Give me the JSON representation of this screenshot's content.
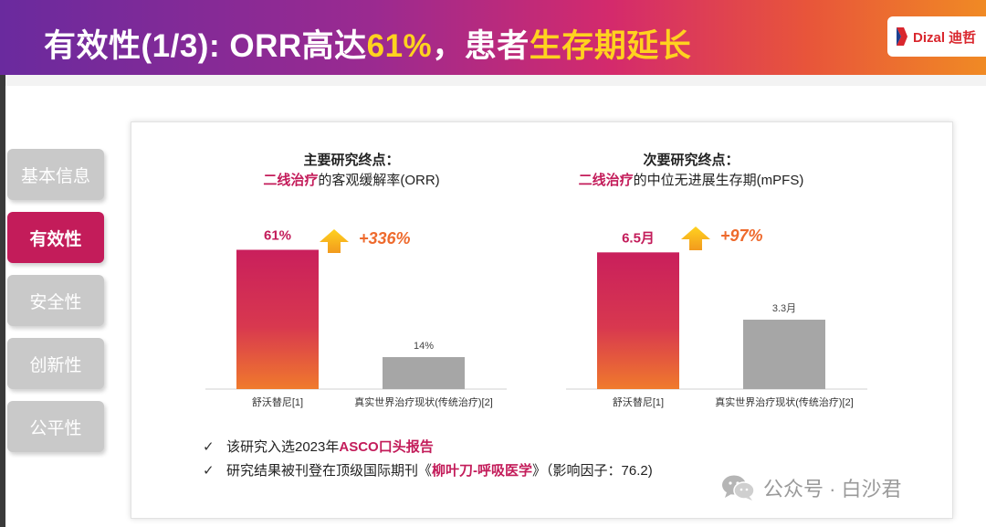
{
  "header": {
    "title_prefix": "有效性(1/3): ORR高达",
    "title_hl1": "61%",
    "title_mid": "，患者",
    "title_hl2": "生存期延长",
    "logo_text": "Dizal 迪哲"
  },
  "nav": {
    "items": [
      {
        "label": "基本信息",
        "active": false
      },
      {
        "label": "有效性",
        "active": true
      },
      {
        "label": "安全性",
        "active": false
      },
      {
        "label": "创新性",
        "active": false
      },
      {
        "label": "公平性",
        "active": false
      }
    ]
  },
  "chart_data": [
    {
      "type": "bar",
      "title": "主要研究终点：",
      "subtitle_highlight": "二线治疗",
      "subtitle_rest": "的客观缓解率(ORR)",
      "categories": [
        "舒沃替尼[1]",
        "真实世界治疗现状(传统治疗)[2]"
      ],
      "values": [
        61,
        14
      ],
      "value_labels": [
        "61%",
        "14%"
      ],
      "ylim": [
        0,
        70
      ],
      "growth_label": "+336%",
      "colors": {
        "highlight_top": "#c91f5c",
        "highlight_bottom": "#f07a2c",
        "baseline": "#a6a6a6"
      },
      "grid": false
    },
    {
      "type": "bar",
      "title": "次要研究终点：",
      "subtitle_highlight": "二线治疗",
      "subtitle_rest": "的中位无进展生存期(mPFS)",
      "categories": [
        "舒沃替尼[1]",
        "真实世界治疗现状(传统治疗)[2]"
      ],
      "values": [
        6.5,
        3.3
      ],
      "value_labels": [
        "6.5月",
        "3.3月"
      ],
      "ylim": [
        0,
        7.6
      ],
      "growth_label": "+97%",
      "colors": {
        "highlight_top": "#c91f5c",
        "highlight_bottom": "#f07a2c",
        "baseline": "#a6a6a6"
      },
      "grid": false
    }
  ],
  "bullets": [
    {
      "prefix": "该研究入选2023年",
      "highlight": "ASCO口头报告",
      "suffix": ""
    },
    {
      "prefix": "研究结果被刊登在顶级国际期刊《",
      "highlight": "柳叶刀-呼吸医学",
      "suffix": "》（影响因子：76.2)"
    }
  ],
  "bullet_mark": "✓",
  "watermark": {
    "text": "公众号 · 白沙君"
  }
}
